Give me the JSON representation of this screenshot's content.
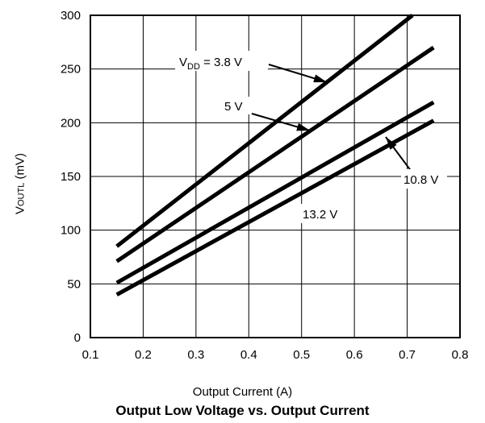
{
  "chart_data": {
    "type": "line",
    "title": "Output Low Voltage vs. Output Current",
    "xlabel": "Output Current (A)",
    "ylabel": {
      "prefix": "V",
      "sub": "OUTL",
      "suffix": " (mV)"
    },
    "xlim": [
      0.1,
      0.8
    ],
    "ylim": [
      0,
      300
    ],
    "xticks": [
      "0.1",
      "0.2",
      "0.3",
      "0.4",
      "0.5",
      "0.6",
      "0.7",
      "0.8"
    ],
    "yticks": [
      "0",
      "50",
      "100",
      "150",
      "200",
      "250",
      "300"
    ],
    "grid": true,
    "series": [
      {
        "name": "VDD = 3.8 V",
        "x": [
          0.15,
          0.71
        ],
        "y": [
          85,
          300
        ]
      },
      {
        "name": "5 V",
        "x": [
          0.15,
          0.75
        ],
        "y": [
          71,
          270
        ]
      },
      {
        "name": "10.8 V",
        "x": [
          0.15,
          0.75
        ],
        "y": [
          51,
          219
        ]
      },
      {
        "name": "13.2 V",
        "x": [
          0.15,
          0.75
        ],
        "y": [
          40,
          202
        ]
      }
    ],
    "annotations": [
      {
        "text_parts": [
          "V",
          "DD",
          " = 3.8 V"
        ]
      },
      {
        "text": "5 V"
      },
      {
        "text": "10.8 V"
      },
      {
        "text": "13.2 V"
      }
    ]
  }
}
